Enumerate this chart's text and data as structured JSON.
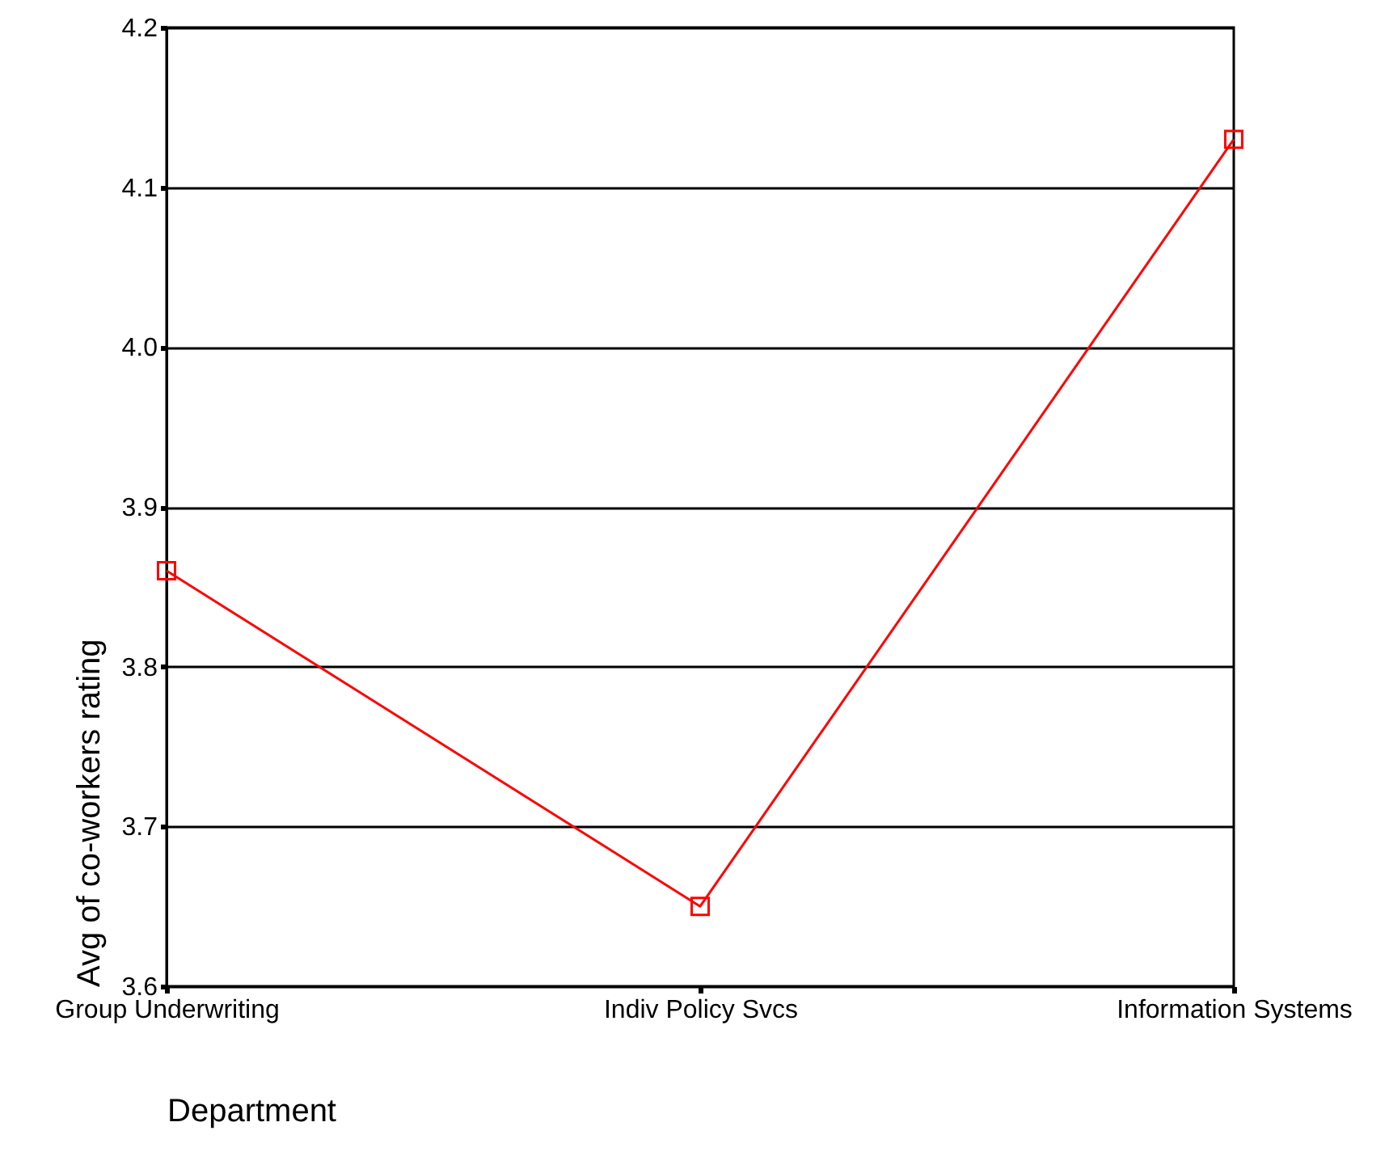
{
  "chart_data": {
    "type": "line",
    "xlabel": "Department",
    "ylabel": "Avg of co-workers rating",
    "categories": [
      "Group Underwriting",
      "Indiv Policy Svcs",
      "Information Systems"
    ],
    "series": [
      {
        "color": "#ff0000",
        "values": [
          3.86,
          3.65,
          4.13
        ]
      }
    ],
    "ylim": [
      3.6,
      4.2
    ],
    "yticks": [
      3.6,
      3.7,
      3.8,
      3.9,
      {
        "value": 4,
        "label": "4.0"
      },
      4.1,
      4.2
    ],
    "grid": "y",
    "marker": "square",
    "line_style": "solid"
  }
}
